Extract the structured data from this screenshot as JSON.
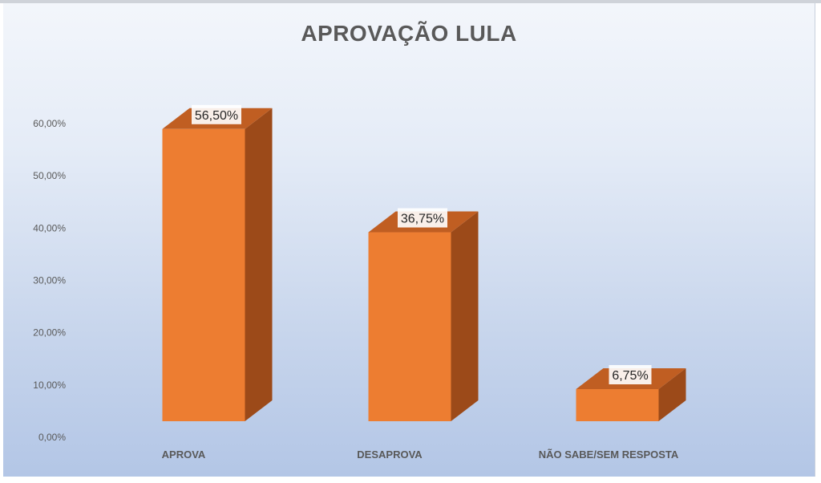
{
  "chart_data": {
    "type": "bar",
    "title": "APROVAÇÃO LULA",
    "categories": [
      "APROVA",
      "DESAPROVA",
      "NÃO SABE/SEM RESPOSTA"
    ],
    "values": [
      56.5,
      36.75,
      6.75
    ],
    "value_labels": [
      "56,50%",
      "36,75%",
      "6,75%"
    ],
    "ylim": [
      0,
      60
    ],
    "yticks": [
      0,
      10,
      20,
      30,
      40,
      50,
      60
    ],
    "ytick_labels": [
      "0,00%",
      "10,00%",
      "20,00%",
      "30,00%",
      "40,00%",
      "50,00%",
      "60,00%"
    ],
    "style": "3d-column",
    "grid": false,
    "legend": "none",
    "colors": {
      "bar_front": "#ED7D31",
      "bar_side": "#9C4A19",
      "bar_top": "#C05E22"
    }
  }
}
